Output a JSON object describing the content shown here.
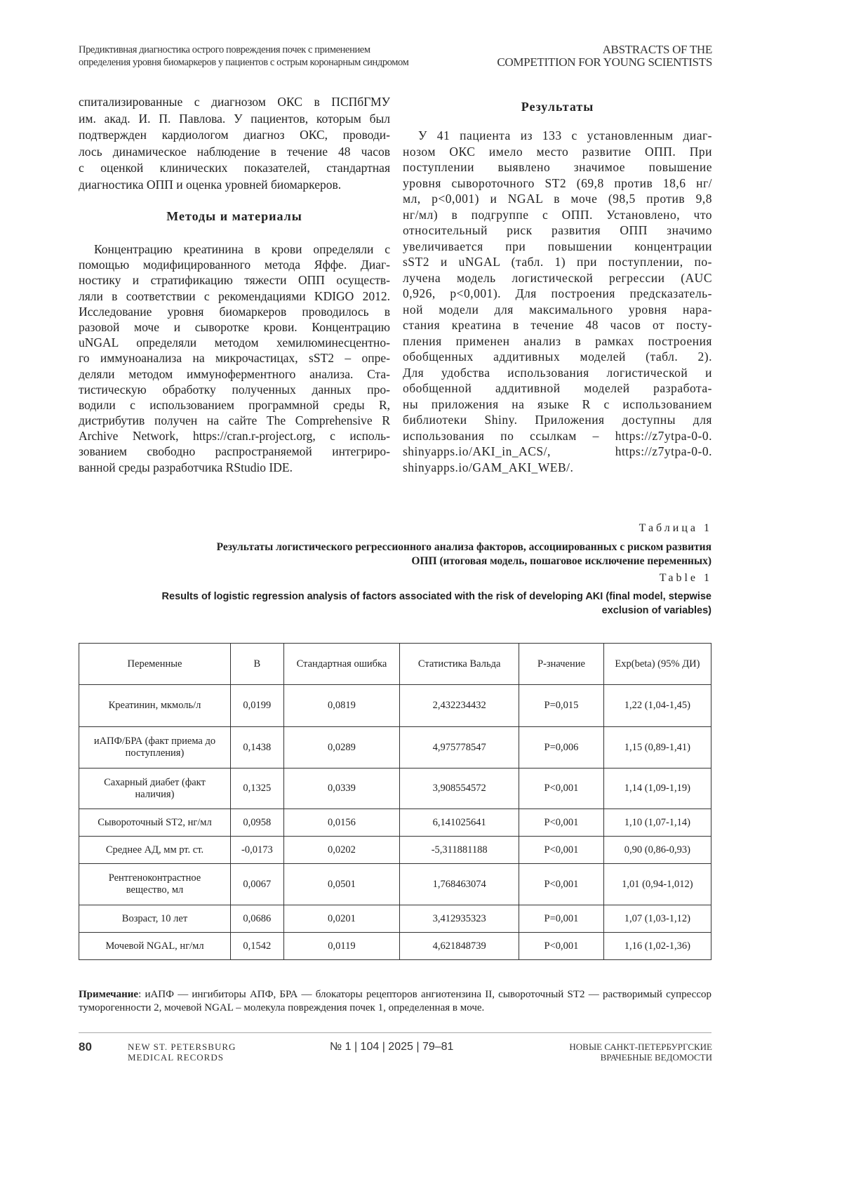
{
  "header": {
    "left_lines": [
      "Предиктивная диагностика острого повреждения почек с применением",
      "определения уровня биомаркеров у пациентов с острым коронарным синдромом"
    ],
    "right_lines": [
      "ABSTRACTS OF THE",
      "COMPETITION FOR YOUNG SCIENTISTS"
    ]
  },
  "left_column": {
    "intro_lines": [
      "спитализированные с диагнозом ОКС в ПСПбГМУ",
      "им. акад. И. П. Павлова. У пациентов, которым был",
      "подтвержден кардиологом диагноз ОКС, проводи-",
      "лось динамическое наблюдение в течение 48 часов",
      "с оценкой клинических показателей, стандартная",
      "диагностика ОПП и оценка уровней биомаркеров."
    ],
    "methods_heading": "Методы и материалы",
    "methods_lines": [
      "Концентрацию креатинина в крови определяли с",
      "помощью модифицированного метода Яффе. Диаг-",
      "ностику и стратификацию тяжести ОПП осуществ-",
      "ляли в соответствии с рекомендациями KDIGO 2012.",
      "Исследование уровня биомаркеров проводилось в",
      "разовой моче и сыворотке крови. Концентрацию",
      "uNGAL определяли методом хемилюминесцентно-",
      "го иммуноанализа на микрочастицах, sST2 – опре-",
      "деляли методом иммуноферментного анализа. Ста-",
      "тистическую обработку полученных данных про-",
      "водили с использованием программной среды R,",
      "дистрибутив получен на сайте The Comprehensive R",
      "Archive Network, https://cran.r-project.org, с исполь-",
      "зованием свободно распространяемой интегриро-",
      "ванной среды разработчика RStudio IDE."
    ]
  },
  "right_column": {
    "results_heading": "Результаты",
    "results_lines": [
      "У 41 пациента из 133 с установленным диаг-",
      "нозом ОКС имело место развитие ОПП. При",
      "поступлении выявлено значимое повышение",
      "уровня сывороточного ST2 (69,8 против 18,6 нг/",
      "мл, p<0,001) и NGAL в моче (98,5 против 9,8",
      "нг/мл) в подгруппе с ОПП. Установлено, что",
      "относительный риск развития ОПП значимо",
      "увеличивается при повышении концентрации",
      "sST2 и uNGAL (табл. 1) при поступлении, по-",
      "лучена модель логистической регрессии (AUC",
      "0,926, p<0,001). Для построения предсказатель-",
      "ной модели для максимального уровня нара-",
      "стания креатина в течение 48 часов от посту-",
      "пления применен анализ в рамках построения",
      "обобщенных аддитивных моделей (табл. 2).",
      "Для удобства использования логистической и",
      "обобщенной аддитивной моделей разработа-",
      "ны приложения на языке R с использованием",
      "библиотеки Shiny. Приложения доступны для",
      "использования по ссылкам – https://z7ytpa-0-0.",
      "shinyapps.io/AKI_in_ACS/,      https://z7ytpa-0-0.",
      "shinyapps.io/GAM_AKI_WEB/."
    ]
  },
  "table": {
    "label_ru": "Таблица 1",
    "caption_ru": [
      "Результаты логистического регрессионного анализа факторов, ассоциированных с риском развития",
      "ОПП (итоговая модель, пошаговое исключение переменных)"
    ],
    "label_en": "Table 1",
    "caption_en": [
      "Results of logistic regression analysis of factors associated with the risk of developing AKI (final model, stepwise",
      "exclusion of variables)"
    ],
    "columns": [
      "Переменные",
      "B",
      "Стандартная ошибка",
      "Статистика Вальда",
      "P-значение",
      "Exp(beta) (95% ДИ)"
    ],
    "rows": [
      [
        "Креатинин, мкмоль/л",
        "0,0199",
        "0,0819",
        "2,432234432",
        "P=0,015",
        "1,22 (1,04-1,45)"
      ],
      [
        "иАПФ/БРА (факт приема до поступления)",
        "0,1438",
        "0,0289",
        "4,975778547",
        "P=0,006",
        "1,15 (0,89-1,41)"
      ],
      [
        "Сахарный диабет (факт наличия)",
        "0,1325",
        "0,0339",
        "3,908554572",
        "P<0,001",
        "1,14 (1,09-1,19)"
      ],
      [
        "Сывороточный ST2,  нг/мл",
        "0,0958",
        "0,0156",
        "6,141025641",
        "P<0,001",
        "1,10 (1,07-1,14)"
      ],
      [
        "Среднее АД, мм рт. ст.",
        "-0,0173",
        "0,0202",
        "-5,311881188",
        "P<0,001",
        "0,90 (0,86-0,93)"
      ],
      [
        "Рентгеноконтрастное вещество,  мл",
        "0,0067",
        "0,0501",
        "1,768463074",
        "P<0,001",
        "1,01 (0,94-1,012)"
      ],
      [
        "Возраст, 10 лет",
        "0,0686",
        "0,0201",
        "3,412935323",
        "P=0,001",
        "1,07 (1,03-1,12)"
      ],
      [
        "Мочевой NGAL,  нг/мл",
        "0,1542",
        "0,0119",
        "4,621848739",
        "P<0,001",
        "1,16 (1,02-1,36)"
      ]
    ]
  },
  "note": {
    "label": "Примечание",
    "text": ": иАПФ — ингибиторы АПФ, БРА — блокаторы рецепторов ангиотензина II, сывороточный ST2 — растворимый супрессор туморогенности 2, мочевой NGAL – молекула повреждения почек 1, определенная в моче."
  },
  "footer": {
    "page_number": "80",
    "journal_en": [
      "NEW ST. PETERSBURG",
      "MEDICAL RECORDS"
    ],
    "issue": "№ 1 | 104 | 2025 | 79–81",
    "journal_ru": [
      "НОВЫЕ САНКТ-ПЕТЕРБУРГСКИЕ",
      "ВРАЧЕБНЫЕ ВЕДОМОСТИ"
    ]
  }
}
